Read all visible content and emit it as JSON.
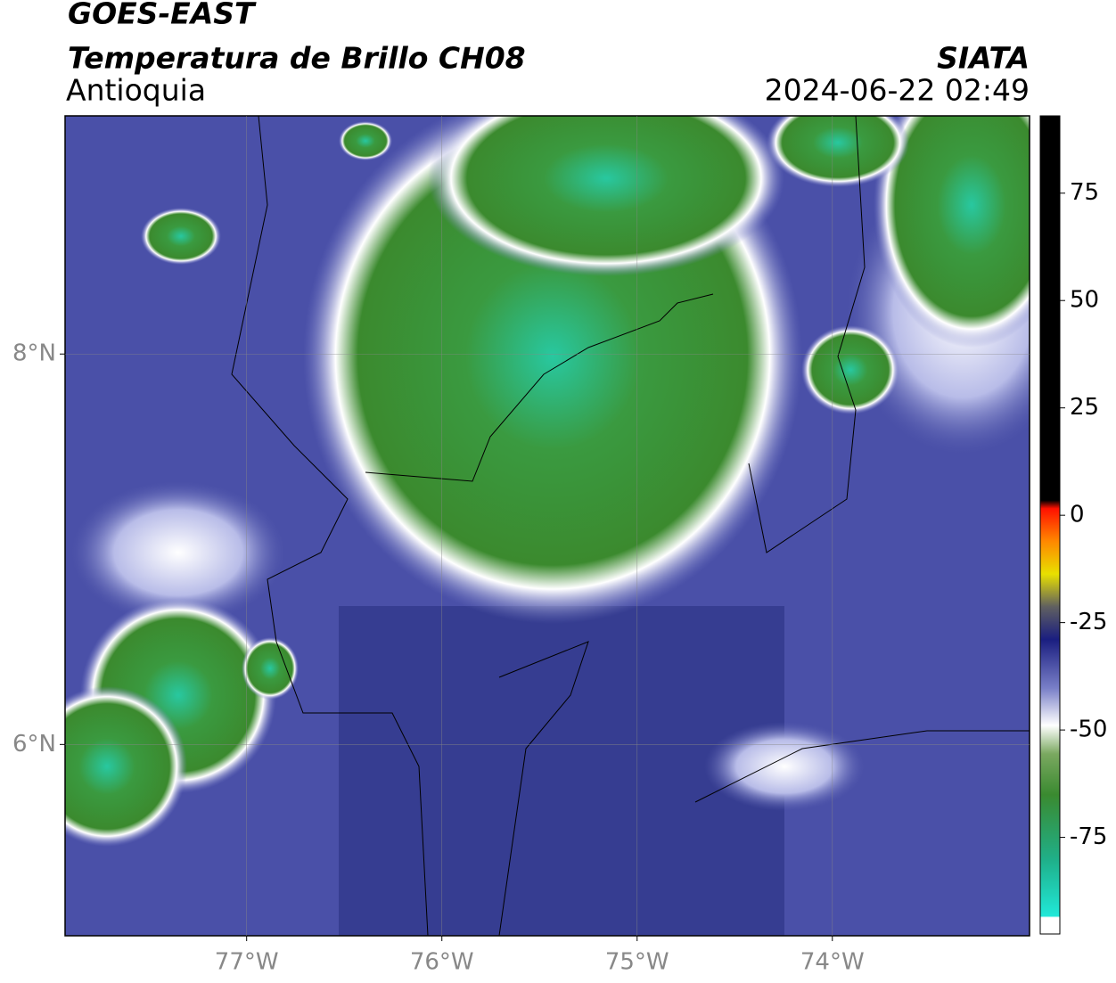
{
  "header": {
    "title": "GOES-EAST",
    "subtitle": "Temperatura de Brillo CH08",
    "region": "Antioquia",
    "source": "SIATA",
    "datetime": "2024-06-22 02:49"
  },
  "map": {
    "xlim": [
      -77.93,
      -72.99
    ],
    "ylim": [
      5.02,
      9.22
    ],
    "xticks": [
      {
        "value": -77,
        "label": "77°W"
      },
      {
        "value": -76,
        "label": "76°W"
      },
      {
        "value": -75,
        "label": "75°W"
      },
      {
        "value": -74,
        "label": "74°W"
      }
    ],
    "yticks": [
      {
        "value": 6,
        "label": "6°N"
      },
      {
        "value": 8,
        "label": "8°N"
      }
    ],
    "grid": true
  },
  "colorbar": {
    "lim": [
      -97.5,
      93
    ],
    "ticks": [
      75,
      50,
      25,
      0,
      -25,
      -50,
      -75
    ]
  }
}
